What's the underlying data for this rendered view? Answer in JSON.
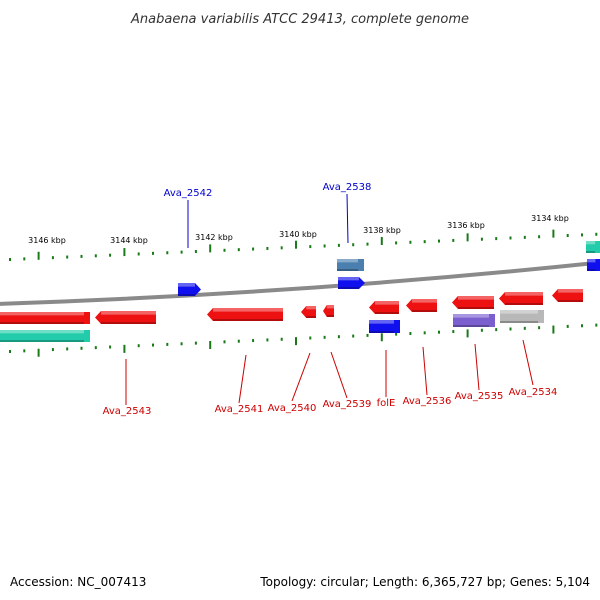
{
  "title": "Anabaena variabilis ATCC 29413, complete genome",
  "footer": {
    "accession": "Accession: NC_007413",
    "summary": "Topology: circular; Length: 6,365,727 bp; Genes: 5,104"
  },
  "colors": {
    "backbone": "#8a8a8a",
    "tick": "#1a7a1a",
    "gene_red": "#ee1111",
    "gene_blue": "#1010ee",
    "gene_teal": "#22ccaa",
    "gene_steel": "#4a7fb0",
    "gene_purple": "#7b5fcf",
    "gene_gray": "#b8b8b8",
    "label_red": "#cc0000",
    "label_blue": "#0000cc"
  },
  "scale_labels": [
    "3146 kbp",
    "3144 kbp",
    "3142 kbp",
    "3140 kbp",
    "3138 kbp",
    "3136 kbp",
    "3134 kbp"
  ],
  "gene_labels": [
    {
      "id": "Ava_2542",
      "color": "blue"
    },
    {
      "id": "Ava_2538",
      "color": "blue"
    },
    {
      "id": "Ava_2543",
      "color": "red"
    },
    {
      "id": "Ava_2541",
      "color": "red"
    },
    {
      "id": "Ava_2540",
      "color": "red"
    },
    {
      "id": "Ava_2539",
      "color": "red"
    },
    {
      "id": "folE",
      "color": "red"
    },
    {
      "id": "Ava_2536",
      "color": "red"
    },
    {
      "id": "Ava_2535",
      "color": "red"
    },
    {
      "id": "Ava_2534",
      "color": "red"
    }
  ]
}
